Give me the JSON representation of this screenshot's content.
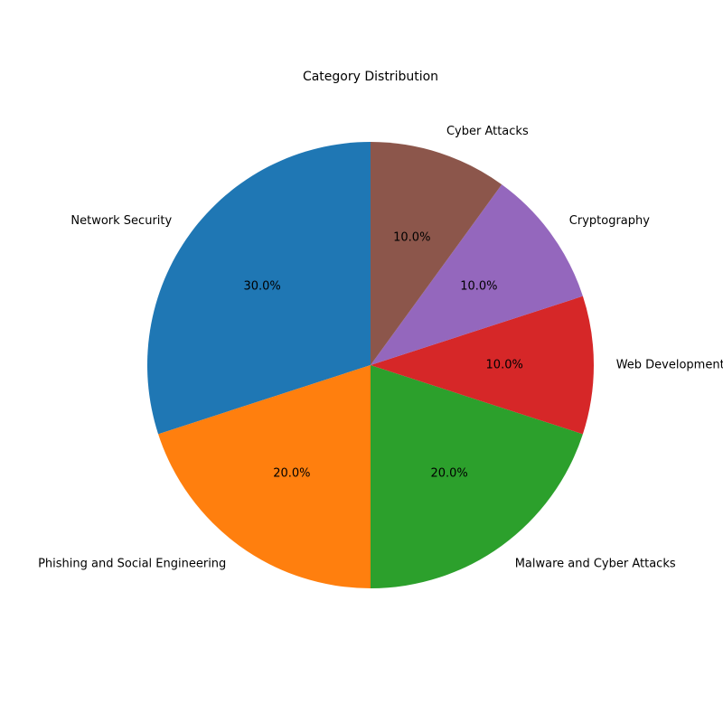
{
  "chart_data": {
    "type": "pie",
    "title": "Category Distribution",
    "categories": [
      "Network Security",
      "Phishing and Social Engineering",
      "Malware and Cyber Attacks",
      "Web Development",
      "Cryptography",
      "Cyber Attacks"
    ],
    "values": [
      30,
      20,
      20,
      10,
      10,
      10
    ],
    "percent_labels": [
      "30.0%",
      "20.0%",
      "20.0%",
      "10.0%",
      "10.0%",
      "10.0%"
    ],
    "colors": [
      "#1f77b4",
      "#ff7f0e",
      "#2ca02c",
      "#d62728",
      "#9467bd",
      "#8c564b"
    ],
    "start_angle_deg": 90,
    "direction": "counterclockwise",
    "legend": "none"
  }
}
